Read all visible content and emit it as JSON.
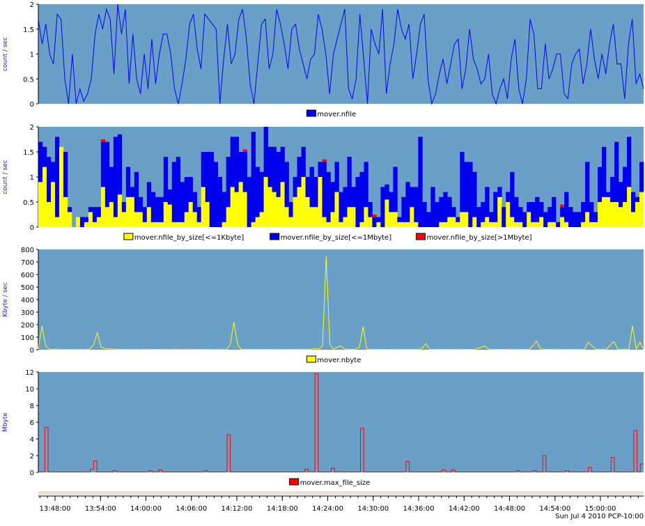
{
  "footer": {
    "timestamp": "Sun Jul  4 2010 PCP-10:00"
  },
  "time_axis": {
    "labels": [
      "13:48:00",
      "13:54:00",
      "14:00:00",
      "14:06:00",
      "14:12:00",
      "14:18:00",
      "14:24:00",
      "14:30:00",
      "14:36:00",
      "14:42:00",
      "14:48:00",
      "14:54:00",
      "15:00:00"
    ]
  },
  "colors": {
    "plot_background": "#6a9fc8",
    "nfile": "#0000ff",
    "small": "#ffff00",
    "medium": "#0000ee",
    "large": "#ff0000",
    "nbyte": "#ffff00",
    "max_file_size": "#ff0000"
  },
  "chart_data": [
    {
      "type": "line",
      "ylabel": "count / sec",
      "ylim": [
        0,
        2
      ],
      "yticks": [
        "0",
        "0.5",
        "1",
        "1.5",
        "2"
      ],
      "legend": "bottom-center",
      "series": [
        {
          "name": "mover.nfile",
          "values": [
            1.7,
            1.2,
            1.6,
            1.0,
            0.8,
            1.8,
            1.7,
            0.5,
            0.0,
            1.0,
            0.0,
            0.3,
            0.05,
            0.2,
            0.5,
            1.4,
            1.8,
            1.5,
            1.9,
            1.7,
            0.6,
            2.0,
            1.4,
            1.9,
            0.4,
            1.4,
            0.5,
            0.2,
            1.0,
            0.3,
            1.3,
            0.4,
            1.0,
            1.4,
            1.4,
            1.0,
            0.3,
            0.0,
            0.4,
            0.9,
            1.6,
            1.8,
            1.1,
            0.7,
            1.8,
            1.7,
            1.6,
            1.5,
            0.0,
            0.9,
            1.6,
            0.8,
            1.0,
            1.7,
            1.9,
            1.3,
            0.4,
            0.0,
            0.8,
            1.6,
            1.7,
            0.7,
            1.0,
            1.9,
            1.6,
            1.2,
            0.7,
            1.5,
            1.6,
            1.1,
            0.8,
            0.5,
            0.9,
            1.0,
            1.8,
            1.5,
            1.0,
            0.2,
            1.0,
            1.3,
            1.6,
            1.9,
            0.3,
            0.1,
            0.5,
            1.8,
            0.9,
            0.0,
            1.5,
            1.2,
            1.0,
            1.9,
            0.2,
            0.8,
            1.2,
            1.9,
            1.5,
            1.3,
            1.6,
            0.5,
            1.0,
            1.6,
            1.8,
            0.5,
            0.0,
            0.2,
            0.6,
            0.9,
            0.4,
            0.8,
            1.2,
            1.3,
            0.3,
            0.7,
            1.5,
            0.9,
            0.7,
            0.4,
            0.5,
            1.0,
            0.2,
            0.0,
            0.3,
            0.5,
            0.1,
            0.9,
            1.3,
            0.3,
            0.0,
            0.5,
            1.7,
            1.4,
            0.3,
            0.3,
            1.2,
            0.5,
            0.7,
            1.0,
            1.0,
            0.2,
            0.1,
            0.8,
            1.0,
            1.1,
            0.4,
            0.8,
            1.5,
            0.9,
            0.5,
            1.0,
            0.6,
            1.2,
            1.6,
            0.8,
            0.8,
            0.1,
            1.2,
            1.7,
            0.4,
            0.6,
            0.3
          ]
        }
      ]
    },
    {
      "type": "bar",
      "stacked": true,
      "ylabel": "count / sec",
      "ylim": [
        0,
        2
      ],
      "yticks": [
        "0",
        "0.5",
        "1",
        "1.5",
        "2"
      ],
      "legend": "bottom-center",
      "series": [
        {
          "name": "mover.nfile_by_size[<=1Kbyte]",
          "values": [
            0.9,
            1.2,
            0.5,
            0.9,
            0.2,
            1.6,
            0.6,
            0.3,
            0.0,
            0.2,
            0.0,
            0.1,
            0.3,
            0.1,
            0.2,
            0.8,
            0.4,
            0.5,
            0.2,
            0.65,
            0.3,
            0.6,
            0.6,
            0.3,
            0.3,
            0.1,
            0.4,
            0.1,
            0.1,
            0.1,
            0.5,
            0.45,
            0.1,
            0.1,
            0.1,
            0.3,
            0.5,
            0.3,
            0.1,
            0.8,
            0.5,
            0.0,
            0.0,
            0.0,
            0.1,
            0.4,
            0.8,
            0.7,
            0.9,
            0.7,
            0.0,
            0.1,
            0.2,
            0.3,
            1.0,
            0.8,
            0.7,
            0.6,
            0.9,
            0.4,
            0.2,
            0.6,
            0.8,
            1.0,
            0.6,
            0.4,
            0.4,
            1.0,
            0.2,
            0.1,
            0.3,
            0.7,
            0.1,
            0.2,
            0.4,
            0.4,
            0.0,
            0.1,
            0.4,
            0.2,
            0.0,
            0.1,
            0.0,
            0.55,
            0.3,
            0.3,
            0.1,
            0.1,
            0.1,
            0.4,
            0.1,
            0.0,
            0.0,
            0.0,
            0.0,
            0.0,
            0.1,
            0.1,
            0.2,
            0.2,
            0.1,
            0.3,
            0.3,
            0.0,
            0.2,
            0.0,
            0.1,
            0.2,
            0.1,
            0.1,
            0.6,
            0.0,
            0.5,
            0.2,
            0.1,
            0.1,
            0.0,
            0.3,
            0.1,
            0.1,
            0.2,
            0.0,
            0.1,
            0.1,
            0.0,
            0.2,
            0.1,
            0.0,
            0.0,
            0.0,
            0.1,
            0.3,
            0.1,
            0.1,
            0.5,
            0.6,
            0.6,
            0.5,
            0.5,
            0.4,
            0.5,
            0.8,
            0.3,
            0.5,
            0.7
          ]
        },
        {
          "name": "mover.nfile_by_size[<=1Mbyte]",
          "values": [
            0.8,
            0.4,
            0.9,
            0.4,
            1.6,
            0.0,
            0.9,
            0.1,
            0.0,
            0.0,
            0.2,
            0.1,
            0.1,
            0.3,
            0.2,
            0.9,
            1.3,
            0.7,
            1.6,
            1.2,
            0.2,
            0.6,
            0.2,
            0.8,
            0.3,
            0.3,
            0.5,
            0.6,
            0.5,
            0.5,
            0.9,
            0.3,
            1.2,
            1.3,
            0.8,
            0.7,
            0.5,
            0.4,
            0.3,
            0.7,
            1.0,
            1.5,
            1.3,
            1.0,
            0.6,
            1.0,
            1.0,
            1.1,
            0.6,
            0.8,
            1.0,
            1.8,
            1.0,
            0.8,
            1.0,
            0.8,
            0.9,
            0.9,
            0.7,
            0.9,
            0.3,
            0.4,
            0.6,
            0.6,
            0.4,
            0.8,
            0.6,
            0.3,
            1.1,
            1.0,
            0.6,
            0.6,
            0.6,
            0.6,
            1.0,
            0.4,
            1.0,
            1.0,
            0.9,
            0.3,
            0.2,
            0.1,
            0.8,
            0.3,
            0.4,
            0.9,
            0.1,
            0.5,
            0.8,
            0.4,
            0.7,
            1.8,
            0.5,
            0.3,
            0.8,
            0.5,
            0.5,
            0.6,
            0.4,
            0.2,
            0.1,
            1.2,
            1.0,
            1.3,
            0.9,
            0.4,
            0.4,
            0.6,
            0.2,
            0.6,
            0.2,
            0.4,
            0.2,
            0.9,
            0.5,
            0.3,
            0.3,
            0.2,
            0.4,
            0.5,
            0.3,
            0.3,
            0.3,
            0.5,
            0.1,
            0.2,
            0.6,
            0.4,
            0.3,
            0.3,
            0.4,
            1.0,
            0.4,
            0.2,
            0.7,
            1.0,
            0.1,
            0.5,
            1.2,
            0.5,
            0.7,
            1.0,
            0.4,
            0.1,
            0.6
          ]
        },
        {
          "name": "mover.nfile_by_size[>1Mbyte]",
          "values": [
            0,
            0,
            0,
            0,
            0,
            0,
            0,
            0,
            0,
            0,
            0,
            0,
            0,
            0,
            0,
            0.05,
            0,
            0,
            0,
            0,
            0,
            0,
            0,
            0,
            0,
            0,
            0,
            0,
            0,
            0,
            0,
            0,
            0,
            0,
            0,
            0,
            0,
            0,
            0,
            0,
            0,
            0,
            0,
            0,
            0,
            0,
            0,
            0,
            0,
            0.05,
            0,
            0,
            0,
            0,
            0,
            0,
            0,
            0,
            0,
            0,
            0,
            0,
            0,
            0,
            0,
            0,
            0,
            0,
            0.05,
            0,
            0,
            0,
            0,
            0,
            0,
            0,
            0,
            0,
            0,
            0,
            0.05,
            0,
            0,
            0,
            0,
            0,
            0,
            0,
            0,
            0,
            0,
            0,
            0,
            0,
            0,
            0,
            0,
            0,
            0,
            0,
            0,
            0,
            0,
            0,
            0,
            0,
            0,
            0,
            0,
            0,
            0,
            0,
            0,
            0,
            0,
            0,
            0,
            0,
            0,
            0,
            0,
            0,
            0,
            0,
            0,
            0.05,
            0,
            0,
            0,
            0,
            0,
            0,
            0,
            0,
            0,
            0,
            0,
            0,
            0,
            0,
            0,
            0,
            0,
            0,
            0
          ]
        }
      ]
    },
    {
      "type": "line",
      "ylabel": "Kbyte / sec",
      "ylim": [
        0,
        800
      ],
      "yticks": [
        "0",
        "100",
        "200",
        "300",
        "400",
        "500",
        "600",
        "700",
        "800"
      ],
      "legend": "bottom-center",
      "series": [
        {
          "name": "mover.nbyte",
          "values": [
            5,
            190,
            30,
            5,
            3,
            5,
            3,
            2,
            3,
            2,
            2,
            2,
            2,
            3,
            5,
            40,
            135,
            20,
            10,
            5,
            5,
            5,
            3,
            3,
            3,
            2,
            3,
            2,
            2,
            5,
            3,
            3,
            3,
            3,
            5,
            3,
            3,
            5,
            3,
            2,
            3,
            5,
            3,
            3,
            3,
            3,
            3,
            2,
            3,
            5,
            3,
            2,
            40,
            220,
            40,
            3,
            3,
            3,
            3,
            3,
            3,
            3,
            3,
            3,
            2,
            3,
            3,
            2,
            3,
            3,
            3,
            3,
            3,
            5,
            3,
            10,
            5,
            30,
            745,
            40,
            5,
            20,
            30,
            5,
            3,
            3,
            5,
            20,
            185,
            5,
            3,
            3,
            3,
            3,
            3,
            2,
            3,
            3,
            2,
            3,
            3,
            3,
            3,
            3,
            10,
            50,
            3,
            3,
            3,
            3,
            3,
            3,
            3,
            3,
            5,
            3,
            3,
            3,
            3,
            10,
            20,
            30,
            5,
            3,
            3,
            3,
            3,
            3,
            5,
            3,
            2,
            3,
            3,
            3,
            30,
            70,
            10,
            3,
            3,
            3,
            3,
            5,
            3,
            3,
            3,
            3,
            3,
            3,
            3,
            60,
            30,
            5,
            3,
            3,
            5,
            40,
            65,
            5,
            3,
            5,
            3,
            190,
            5,
            60,
            3
          ]
        }
      ]
    },
    {
      "type": "line",
      "step": true,
      "ylabel": "Mbyte",
      "ylim": [
        0,
        12
      ],
      "yticks": [
        "0",
        "2",
        "4",
        "6",
        "8",
        "10",
        "12"
      ],
      "legend": "bottom-center",
      "series": [
        {
          "name": "mover.max_file_size",
          "values": [
            0.05,
            0.05,
            5.4,
            0.05,
            0.05,
            0.05,
            0.05,
            0.05,
            0.05,
            0.05,
            0.05,
            0.05,
            0.05,
            0.05,
            0.05,
            0.05,
            0.4,
            1.4,
            0.05,
            0.05,
            0.05,
            0.05,
            0.05,
            0.2,
            0.05,
            0.05,
            0.05,
            0.05,
            0.05,
            0.05,
            0.05,
            0.05,
            0.05,
            0.05,
            0.2,
            0.05,
            0.05,
            0.3,
            0.05,
            0.05,
            0.05,
            0.05,
            0.05,
            0.05,
            0.05,
            0.05,
            0.05,
            0.05,
            0.05,
            0.05,
            0.05,
            0.2,
            0.05,
            0.05,
            0.05,
            0.05,
            0.05,
            0.05,
            4.5,
            0.05,
            0.05,
            0.05,
            0.05,
            0.05,
            0.05,
            0.05,
            0.05,
            0.05,
            0.05,
            0.05,
            0.05,
            0.05,
            0.05,
            0.05,
            0.05,
            0.05,
            0.05,
            0.05,
            0.05,
            0.05,
            0.05,
            0.05,
            0.4,
            0.05,
            0.05,
            11.8,
            0.05,
            0.05,
            0.05,
            0.05,
            0.5,
            0.05,
            0.05,
            0.05,
            0.05,
            0.05,
            0.05,
            0.05,
            0.05,
            5.3,
            0.05,
            0.05,
            0.05,
            0.05,
            0.05,
            0.05,
            0.05,
            0.05,
            0.05,
            0.05,
            0.05,
            0.05,
            0.05,
            1.3,
            0.05,
            0.05,
            0.05,
            0.05,
            0.05,
            0.05,
            0.05,
            0.05,
            0.05,
            0.05,
            0.3,
            0.05,
            0.05,
            0.3,
            0.05,
            0.05,
            0.05,
            0.05,
            0.05,
            0.05,
            0.05,
            0.05,
            0.05,
            0.05,
            0.05,
            0.05,
            0.05,
            0.05,
            0.05,
            0.05,
            0.05,
            0.05,
            0.05,
            0.2,
            0.05,
            0.05,
            0.05,
            0.05,
            0.2,
            0.05,
            0.05,
            2.0,
            0.05,
            0.05,
            0.05,
            0.05,
            0.05,
            0.05,
            0.2,
            0.05,
            0.05,
            0.05,
            0.05,
            0.05,
            0.05,
            0.6,
            0.05,
            0.05,
            0.05,
            0.05,
            0.05,
            0.05,
            1.8,
            0.05,
            0.05,
            0.05,
            0.05,
            0.05,
            0.05,
            5.0,
            0.05,
            1.0
          ]
        }
      ]
    }
  ]
}
